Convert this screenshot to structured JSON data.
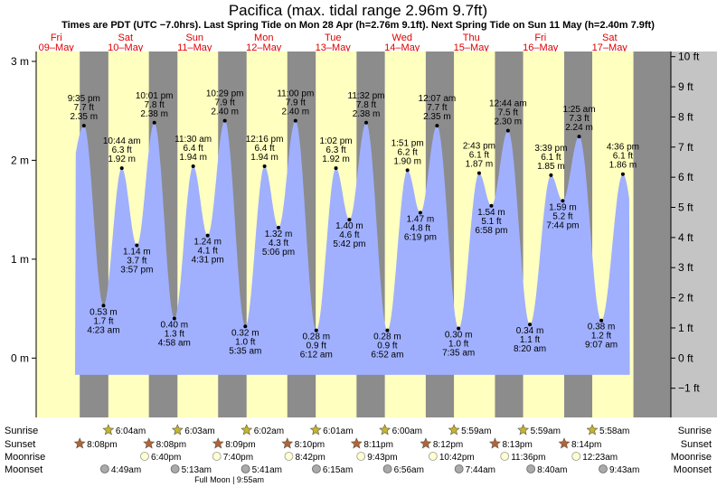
{
  "chart_data": {
    "type": "area",
    "title": "Pacifica (max. tidal range 2.96m 9.7ft)",
    "subtitle": "Times are PDT (UTC −7.0hrs). Last Spring Tide on Mon 28 Apr (h=2.76m 9.1ft). Next Spring Tide on Sun 11 May (h=2.40m 7.9ft)",
    "left_axis": {
      "unit": "m",
      "ticks": [
        "3 m",
        "2 m",
        "1 m",
        "0 m"
      ],
      "values": [
        3,
        2,
        1,
        0
      ],
      "ylim": [
        -0.6,
        3.1
      ]
    },
    "right_axis": {
      "unit": "ft",
      "ticks": [
        "10 ft",
        "9 ft",
        "8 ft",
        "7 ft",
        "6 ft",
        "5 ft",
        "4 ft",
        "3 ft",
        "2 ft",
        "1 ft",
        "0 ft",
        "−1 ft"
      ],
      "values": [
        10,
        9,
        8,
        7,
        6,
        5,
        4,
        3,
        2,
        1,
        0,
        -1
      ]
    },
    "days": [
      {
        "weekday": "Fri",
        "date": "09–May",
        "day": 0
      },
      {
        "weekday": "Sat",
        "date": "10–May",
        "day": 1
      },
      {
        "weekday": "Sun",
        "date": "11–May",
        "day": 2
      },
      {
        "weekday": "Mon",
        "date": "12–May",
        "day": 3
      },
      {
        "weekday": "Tue",
        "date": "13–May",
        "day": 4
      },
      {
        "weekday": "Wed",
        "date": "14–May",
        "day": 5
      },
      {
        "weekday": "Thu",
        "date": "15–May",
        "day": 6
      },
      {
        "weekday": "Fri",
        "date": "16–May",
        "day": 7
      },
      {
        "weekday": "Sat",
        "date": "17–May",
        "day": 8
      }
    ],
    "tides": [
      {
        "day": 0,
        "hour": 21.583,
        "time": "9:35 pm",
        "m": 2.35,
        "m_label": "2.35 m",
        "ft_label": "7.7 ft",
        "type": "high"
      },
      {
        "day": 1,
        "hour": 4.383,
        "time": "4:23 am",
        "m": 0.53,
        "m_label": "0.53 m",
        "ft_label": "1.7 ft",
        "type": "low"
      },
      {
        "day": 1,
        "hour": 10.733,
        "time": "10:44 am",
        "m": 1.92,
        "m_label": "1.92 m",
        "ft_label": "6.3 ft",
        "type": "high"
      },
      {
        "day": 1,
        "hour": 15.95,
        "time": "3:57 pm",
        "m": 1.14,
        "m_label": "1.14 m",
        "ft_label": "3.7 ft",
        "type": "low"
      },
      {
        "day": 1,
        "hour": 22.017,
        "time": "10:01 pm",
        "m": 2.38,
        "m_label": "2.38 m",
        "ft_label": "7.8 ft",
        "type": "high"
      },
      {
        "day": 2,
        "hour": 4.967,
        "time": "4:58 am",
        "m": 0.4,
        "m_label": "0.40 m",
        "ft_label": "1.3 ft",
        "type": "low"
      },
      {
        "day": 2,
        "hour": 11.5,
        "time": "11:30 am",
        "m": 1.94,
        "m_label": "1.94 m",
        "ft_label": "6.4 ft",
        "type": "high"
      },
      {
        "day": 2,
        "hour": 16.517,
        "time": "4:31 pm",
        "m": 1.24,
        "m_label": "1.24 m",
        "ft_label": "4.1 ft",
        "type": "low"
      },
      {
        "day": 2,
        "hour": 22.483,
        "time": "10:29 pm",
        "m": 2.4,
        "m_label": "2.40 m",
        "ft_label": "7.9 ft",
        "type": "high"
      },
      {
        "day": 3,
        "hour": 5.583,
        "time": "5:35 am",
        "m": 0.32,
        "m_label": "0.32 m",
        "ft_label": "1.0 ft",
        "type": "low"
      },
      {
        "day": 3,
        "hour": 12.267,
        "time": "12:16 pm",
        "m": 1.94,
        "m_label": "1.94 m",
        "ft_label": "6.4 ft",
        "type": "high"
      },
      {
        "day": 3,
        "hour": 17.1,
        "time": "5:06 pm",
        "m": 1.32,
        "m_label": "1.32 m",
        "ft_label": "4.3 ft",
        "type": "low"
      },
      {
        "day": 3,
        "hour": 23.0,
        "time": "11:00 pm",
        "m": 2.4,
        "m_label": "2.40 m",
        "ft_label": "7.9 ft",
        "type": "high"
      },
      {
        "day": 4,
        "hour": 6.2,
        "time": "6:12 am",
        "m": 0.28,
        "m_label": "0.28 m",
        "ft_label": "0.9 ft",
        "type": "low"
      },
      {
        "day": 4,
        "hour": 13.033,
        "time": "1:02 pm",
        "m": 1.92,
        "m_label": "1.92 m",
        "ft_label": "6.3 ft",
        "type": "high"
      },
      {
        "day": 4,
        "hour": 17.7,
        "time": "5:42 pm",
        "m": 1.4,
        "m_label": "1.40 m",
        "ft_label": "4.6 ft",
        "type": "low"
      },
      {
        "day": 4,
        "hour": 23.533,
        "time": "11:32 pm",
        "m": 2.38,
        "m_label": "2.38 m",
        "ft_label": "7.8 ft",
        "type": "high"
      },
      {
        "day": 5,
        "hour": 6.867,
        "time": "6:52 am",
        "m": 0.28,
        "m_label": "0.28 m",
        "ft_label": "0.9 ft",
        "type": "low"
      },
      {
        "day": 5,
        "hour": 13.85,
        "time": "1:51 pm",
        "m": 1.9,
        "m_label": "1.90 m",
        "ft_label": "6.2 ft",
        "type": "high"
      },
      {
        "day": 5,
        "hour": 18.317,
        "time": "6:19 pm",
        "m": 1.47,
        "m_label": "1.47 m",
        "ft_label": "4.8 ft",
        "type": "low"
      },
      {
        "day": 6,
        "hour": 0.117,
        "time": "12:07 am",
        "m": 2.35,
        "m_label": "2.35 m",
        "ft_label": "7.7 ft",
        "type": "high"
      },
      {
        "day": 6,
        "hour": 7.583,
        "time": "7:35 am",
        "m": 0.3,
        "m_label": "0.30 m",
        "ft_label": "1.0 ft",
        "type": "low"
      },
      {
        "day": 6,
        "hour": 14.717,
        "time": "2:43 pm",
        "m": 1.87,
        "m_label": "1.87 m",
        "ft_label": "6.1 ft",
        "type": "high"
      },
      {
        "day": 6,
        "hour": 18.967,
        "time": "6:58 pm",
        "m": 1.54,
        "m_label": "1.54 m",
        "ft_label": "5.1 ft",
        "type": "low"
      },
      {
        "day": 7,
        "hour": 0.733,
        "time": "12:44 am",
        "m": 2.3,
        "m_label": "2.30 m",
        "ft_label": "7.5 ft",
        "type": "high"
      },
      {
        "day": 7,
        "hour": 8.333,
        "time": "8:20 am",
        "m": 0.34,
        "m_label": "0.34 m",
        "ft_label": "1.1 ft",
        "type": "low"
      },
      {
        "day": 7,
        "hour": 15.65,
        "time": "3:39 pm",
        "m": 1.85,
        "m_label": "1.85 m",
        "ft_label": "6.1 ft",
        "type": "high"
      },
      {
        "day": 7,
        "hour": 19.733,
        "time": "7:44 pm",
        "m": 1.59,
        "m_label": "1.59 m",
        "ft_label": "5.2 ft",
        "type": "low"
      },
      {
        "day": 8,
        "hour": 1.417,
        "time": "1:25 am",
        "m": 2.24,
        "m_label": "2.24 m",
        "ft_label": "7.3 ft",
        "type": "high"
      },
      {
        "day": 8,
        "hour": 9.117,
        "time": "9:07 am",
        "m": 0.38,
        "m_label": "0.38 m",
        "ft_label": "1.2 ft",
        "type": "low"
      },
      {
        "day": 8,
        "hour": 16.6,
        "time": "4:36 pm",
        "m": 1.86,
        "m_label": "1.86 m",
        "ft_label": "6.1 ft",
        "type": "high"
      }
    ],
    "sunrise": [
      {
        "day": 1,
        "hour": 6.067,
        "time": "6:04am"
      },
      {
        "day": 2,
        "hour": 6.05,
        "time": "6:03am"
      },
      {
        "day": 3,
        "hour": 6.033,
        "time": "6:02am"
      },
      {
        "day": 4,
        "hour": 6.017,
        "time": "6:01am"
      },
      {
        "day": 5,
        "hour": 6.0,
        "time": "6:00am"
      },
      {
        "day": 6,
        "hour": 5.983,
        "time": "5:59am"
      },
      {
        "day": 7,
        "hour": 5.983,
        "time": "5:59am"
      },
      {
        "day": 8,
        "hour": 5.967,
        "time": "5:58am"
      }
    ],
    "sunset": [
      {
        "day": 0,
        "hour": 20.133,
        "time": "8:08pm"
      },
      {
        "day": 1,
        "hour": 20.133,
        "time": "8:08pm"
      },
      {
        "day": 2,
        "hour": 20.15,
        "time": "8:09pm"
      },
      {
        "day": 3,
        "hour": 20.167,
        "time": "8:10pm"
      },
      {
        "day": 4,
        "hour": 20.183,
        "time": "8:11pm"
      },
      {
        "day": 5,
        "hour": 20.2,
        "time": "8:12pm"
      },
      {
        "day": 6,
        "hour": 20.217,
        "time": "8:13pm"
      },
      {
        "day": 7,
        "hour": 20.233,
        "time": "8:14pm"
      }
    ],
    "moonrise": [
      {
        "day": 1,
        "hour": 18.667,
        "time": "6:40pm"
      },
      {
        "day": 2,
        "hour": 19.667,
        "time": "7:40pm"
      },
      {
        "day": 3,
        "hour": 20.7,
        "time": "8:42pm"
      },
      {
        "day": 4,
        "hour": 21.717,
        "time": "9:43pm"
      },
      {
        "day": 5,
        "hour": 22.7,
        "time": "10:42pm"
      },
      {
        "day": 6,
        "hour": 23.6,
        "time": "11:36pm"
      },
      {
        "day": 8,
        "hour": 0.383,
        "time": "12:23am"
      }
    ],
    "moonset": [
      {
        "day": 1,
        "hour": 4.817,
        "time": "4:49am"
      },
      {
        "day": 2,
        "hour": 5.217,
        "time": "5:13am"
      },
      {
        "day": 3,
        "hour": 5.683,
        "time": "5:41am"
      },
      {
        "day": 4,
        "hour": 6.25,
        "time": "6:15am"
      },
      {
        "day": 5,
        "hour": 6.933,
        "time": "6:56am"
      },
      {
        "day": 6,
        "hour": 7.733,
        "time": "7:44am"
      },
      {
        "day": 7,
        "hour": 8.667,
        "time": "8:40am"
      },
      {
        "day": 8,
        "hour": 9.717,
        "time": "9:43am"
      }
    ],
    "full_moon": {
      "label": "Full Moon | 9:55am"
    },
    "row_labels": {
      "sunrise": "Sunrise",
      "sunset": "Sunset",
      "moonrise": "Moonrise",
      "moonset": "Moonset"
    },
    "grid": false,
    "colors": {
      "day": "#ffffc0",
      "night": "#8c8c8c",
      "water": "#a0b0ff",
      "day_label": "#e00000",
      "sunrise_star": "#c8b428",
      "sunset_star": "#b46432",
      "moonrise": "#ffffd0",
      "moonset": "#aaaaaa",
      "axis_panel": "#c4c4c4"
    }
  }
}
